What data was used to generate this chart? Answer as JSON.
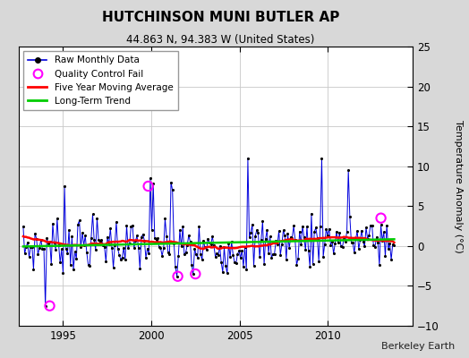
{
  "title": "HUTCHINSON MUNI BUTLER AP",
  "subtitle": "44.863 N, 94.383 W (United States)",
  "ylabel": "Temperature Anomaly (°C)",
  "credit": "Berkeley Earth",
  "ylim": [
    -10,
    25
  ],
  "yticks": [
    -10,
    -5,
    0,
    5,
    10,
    15,
    20,
    25
  ],
  "xmin": 1992.5,
  "xmax": 2014.8,
  "xticks": [
    1995,
    2000,
    2005,
    2010
  ],
  "bg_color": "#d8d8d8",
  "plot_bg_color": "#ffffff",
  "raw_color": "#0000dd",
  "raw_dot_color": "#000000",
  "qc_fail_color": "#ff00ff",
  "moving_avg_color": "#ff0000",
  "trend_color": "#00cc00",
  "raw_linewidth": 0.7,
  "moving_avg_linewidth": 1.8,
  "trend_linewidth": 1.8,
  "n_months": 252,
  "start_year": 1992.75,
  "qc_fail_positions": [
    1994.25,
    1999.83,
    2001.5,
    2002.5,
    2013.0
  ],
  "qc_fail_values": [
    -7.5,
    7.5,
    -3.8,
    -3.5,
    3.5
  ]
}
